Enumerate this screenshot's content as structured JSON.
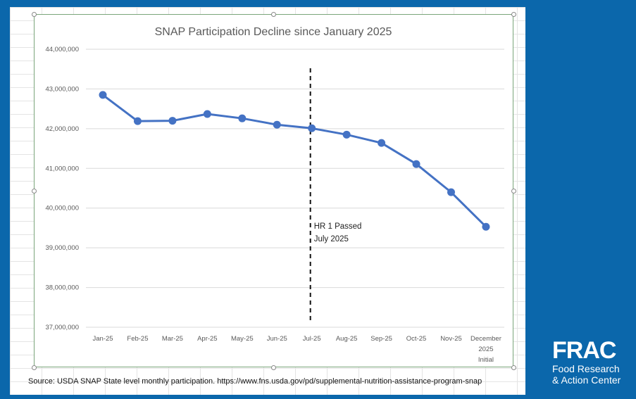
{
  "chart_data": {
    "type": "line",
    "title": "SNAP Participation Decline since January 2025",
    "categories": [
      "Jan-25",
      "Feb-25",
      "Mar-25",
      "Apr-25",
      "May-25",
      "Jun-25",
      "Jul-25",
      "Aug-25",
      "Sep-25",
      "Oct-25",
      "Nov-25",
      [
        "December",
        "2025",
        "Initial"
      ]
    ],
    "values": [
      42850000,
      42190000,
      42200000,
      42370000,
      42260000,
      42100000,
      42010000,
      41850000,
      41640000,
      41110000,
      40400000,
      39530000
    ],
    "ylim": [
      37000000,
      44000000
    ],
    "yticks": [
      37000000,
      38000000,
      39000000,
      40000000,
      41000000,
      42000000,
      43000000,
      44000000
    ],
    "ytick_labels": [
      "37,000,000",
      "38,000,000",
      "39,000,000",
      "40,000,000",
      "41,000,000",
      "42,000,000",
      "43,000,000",
      "44,000,000"
    ],
    "grid": true,
    "series_color": "#4472c4",
    "annotation": {
      "at_category": "Jul-25",
      "lines": [
        "HR 1 Passed",
        "July 2025"
      ],
      "style": "dashed-vertical-line"
    }
  },
  "source": "Source: USDA SNAP State level monthly participation. https://www.fns.usda.gov/pd/supplemental-nutrition-assistance-program-snap",
  "logo": {
    "name": "FRAC",
    "line1": "Food Research",
    "line2": "& Action Center"
  },
  "colors": {
    "background": "#0b67ab"
  }
}
